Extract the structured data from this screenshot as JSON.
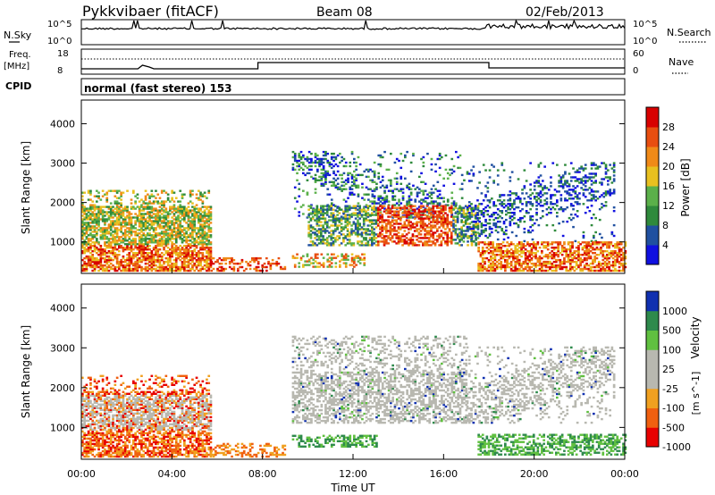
{
  "header": {
    "station": "Pykkvibaer (fitACF)",
    "beam": "Beam 08",
    "date": "02/Feb/2013"
  },
  "strips": {
    "nsky_label": "N.Sky",
    "nsky_ticks": [
      "10^5",
      "10^0"
    ],
    "nsearch_label": "N.Search",
    "nsearch_ticks": [
      "10^5",
      "10^0"
    ],
    "freq_label": "Freq.",
    "freq_unit": "[MHz]",
    "freq_ticks": [
      "18",
      "8"
    ],
    "nave_label": "Nave",
    "nave_ticks": [
      "60",
      "0"
    ],
    "cpid_label": "CPID",
    "cpid_text": "normal (fast stereo) 153"
  },
  "colors": {
    "power": [
      "#1010e0",
      "#2050a0",
      "#2f8a3c",
      "#5bb04a",
      "#e8c020",
      "#f08a18",
      "#e84e10",
      "#d80000"
    ],
    "velocity": [
      "#e80000",
      "#f06010",
      "#f0a020",
      "#b8b8b0",
      "#b8b8b0",
      "#60c040",
      "#2e8a4c",
      "#1030b0"
    ],
    "ground_scatter": "#b8b8b0"
  },
  "chart_data": [
    {
      "type": "heatmap",
      "panel": "power",
      "ylabel": "Slant Range [km]",
      "y_ticks": [
        "1000",
        "2000",
        "3000",
        "4000"
      ],
      "ylim": [
        200,
        4600
      ],
      "x_ticks": [
        "00:00",
        "04:00",
        "08:00",
        "12:00",
        "16:00",
        "20:00",
        "00:00"
      ],
      "xlim_hours": [
        0,
        24
      ],
      "colorbar_label": "Power [dB]",
      "colorbar_ticks": [
        "4",
        "8",
        "12",
        "16",
        "20",
        "24",
        "28"
      ],
      "scatter_regions": [
        {
          "t": [
            0.0,
            5.7
          ],
          "r": [
            250,
            2400
          ],
          "level": [
            3,
            7
          ]
        },
        {
          "t": [
            9.3,
            17.0
          ],
          "r": [
            1300,
            3300
          ],
          "level": [
            1,
            4
          ]
        },
        {
          "t": [
            13.0,
            16.2
          ],
          "r": [
            900,
            2000
          ],
          "level": [
            4,
            7
          ]
        },
        {
          "t": [
            17.0,
            23.5
          ],
          "r": [
            900,
            3000
          ],
          "level": [
            1,
            3
          ]
        },
        {
          "t": [
            17.5,
            24.0
          ],
          "r": [
            250,
            1000
          ],
          "level": [
            4,
            7
          ]
        }
      ]
    },
    {
      "type": "heatmap",
      "panel": "velocity",
      "ylabel": "Slant Range [km]",
      "y_ticks": [
        "1000",
        "2000",
        "3000",
        "4000"
      ],
      "ylim": [
        200,
        4600
      ],
      "x_ticks": [
        "00:00",
        "04:00",
        "08:00",
        "12:00",
        "16:00",
        "20:00",
        "00:00"
      ],
      "xlim_hours": [
        0,
        24
      ],
      "xlabel": "Time UT",
      "colorbar_label": "Velocity",
      "colorbar_unit": "[m s^-1]",
      "colorbar_ticks": [
        "1000",
        "500",
        "100",
        "25",
        "-25",
        "-100",
        "-500",
        "-1000"
      ],
      "scatter_regions": [
        {
          "t": [
            0.0,
            5.7
          ],
          "r": [
            250,
            2400
          ],
          "level": "ground+negative"
        },
        {
          "t": [
            9.3,
            17.0
          ],
          "r": [
            900,
            3300
          ],
          "level": "ground"
        },
        {
          "t": [
            17.0,
            23.5
          ],
          "r": [
            900,
            3000
          ],
          "level": "ground"
        },
        {
          "t": [
            17.5,
            24.0
          ],
          "r": [
            250,
            1000
          ],
          "level": "positive"
        }
      ]
    }
  ]
}
